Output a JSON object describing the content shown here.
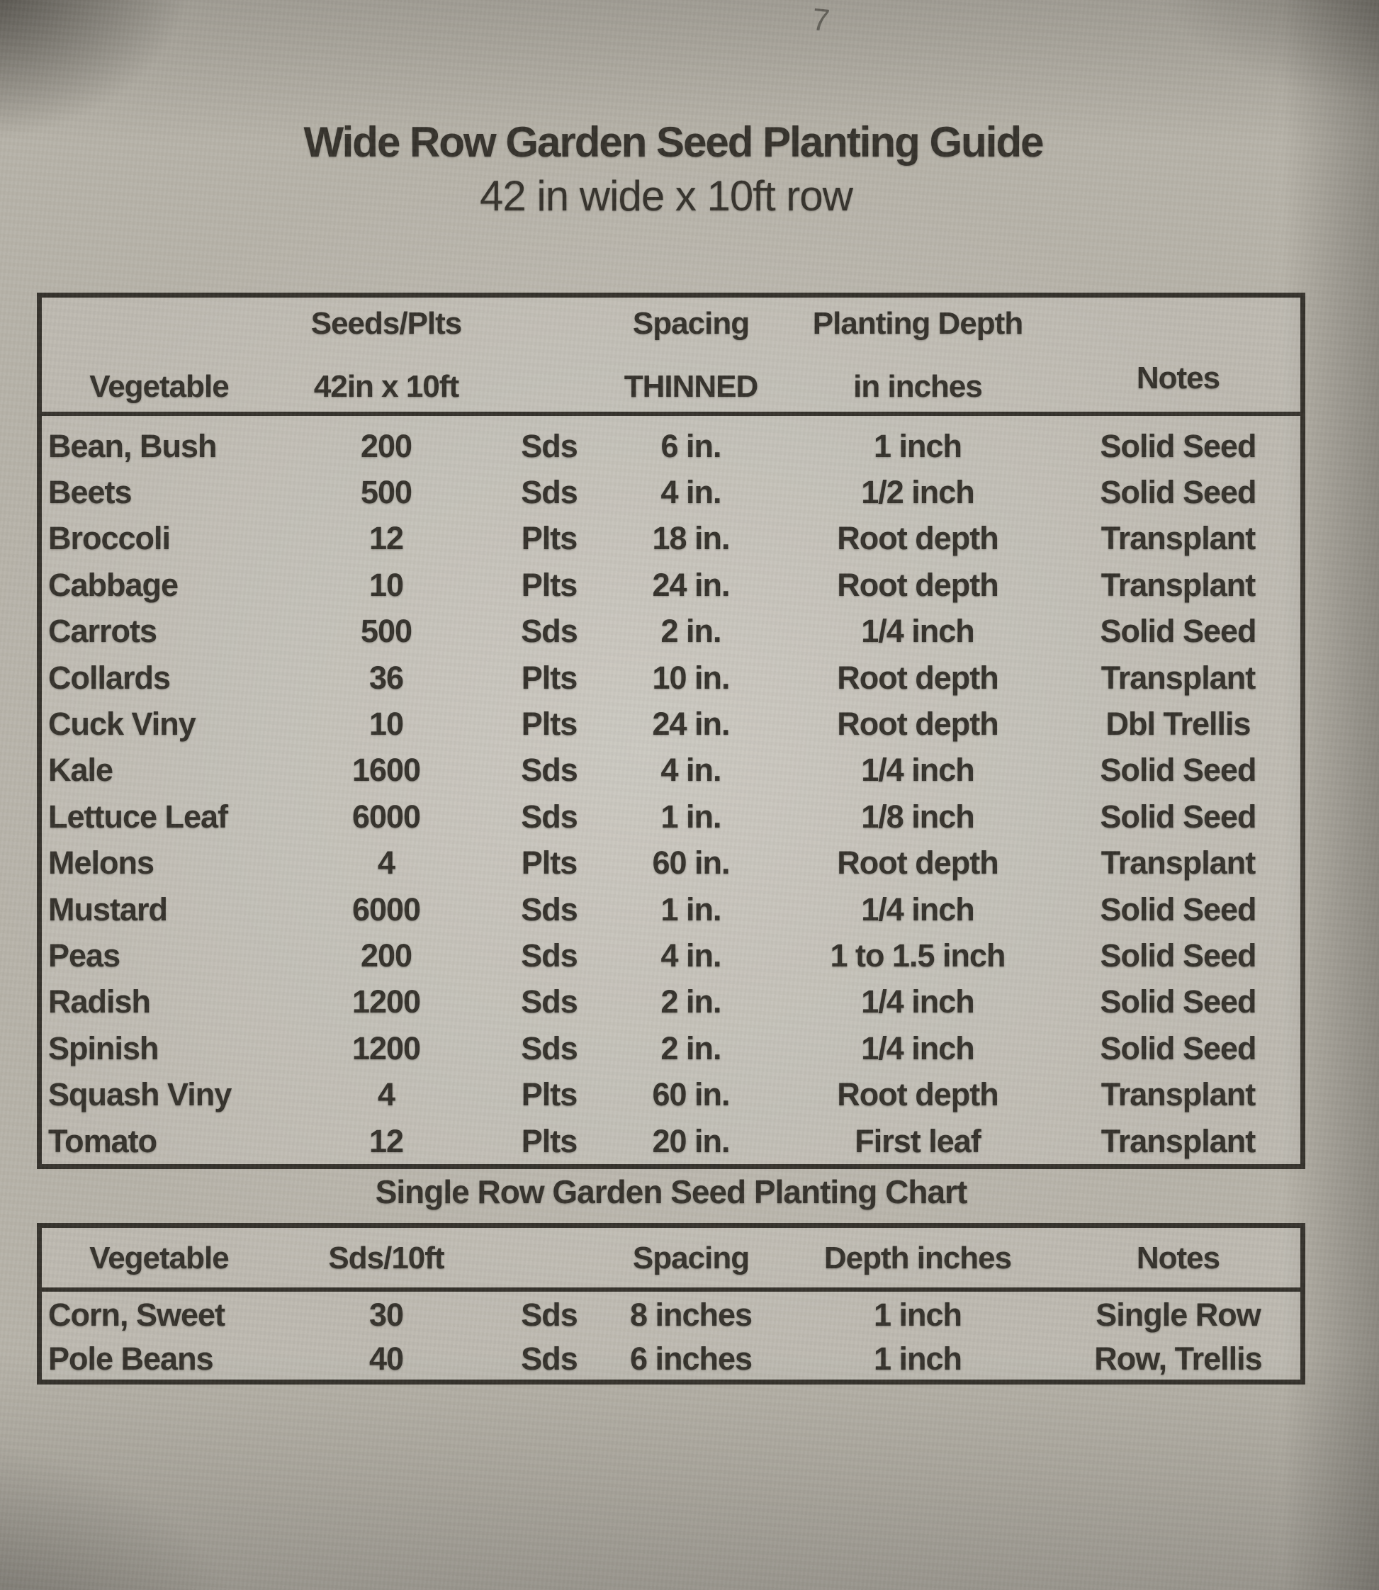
{
  "page": {
    "corner_mark": "7",
    "title": "Wide Row Garden Seed Planting Guide",
    "subtitle": "42 in wide x 10ft row"
  },
  "colors": {
    "paper": "#b6b2a8",
    "ink": "#33302a",
    "pencil_mark": "#55524b"
  },
  "wide_row_table": {
    "headers": {
      "vegetable": "Vegetable",
      "seeds_line1": "Seeds/Plts",
      "seeds_line2": "42in x 10ft",
      "spacing_line1": "Spacing",
      "spacing_line2": "THINNED",
      "depth_line1": "Planting Depth",
      "depth_line2": "in inches",
      "notes": "Notes"
    },
    "rows": [
      {
        "vegetable": "Bean, Bush",
        "qty": "200",
        "unit": "Sds",
        "spacing": "6 in.",
        "depth": "1 inch",
        "notes": "Solid Seed"
      },
      {
        "vegetable": "Beets",
        "qty": "500",
        "unit": "Sds",
        "spacing": "4 in.",
        "depth": "1/2 inch",
        "notes": "Solid Seed"
      },
      {
        "vegetable": "Broccoli",
        "qty": "12",
        "unit": "Plts",
        "spacing": "18 in.",
        "depth": "Root depth",
        "notes": "Transplant"
      },
      {
        "vegetable": "Cabbage",
        "qty": "10",
        "unit": "Plts",
        "spacing": "24 in.",
        "depth": "Root depth",
        "notes": "Transplant"
      },
      {
        "vegetable": "Carrots",
        "qty": "500",
        "unit": "Sds",
        "spacing": "2 in.",
        "depth": "1/4 inch",
        "notes": "Solid Seed"
      },
      {
        "vegetable": "Collards",
        "qty": "36",
        "unit": "Plts",
        "spacing": "10 in.",
        "depth": "Root depth",
        "notes": "Transplant"
      },
      {
        "vegetable": "Cuck Viny",
        "qty": "10",
        "unit": "Plts",
        "spacing": "24 in.",
        "depth": "Root depth",
        "notes": "Dbl Trellis"
      },
      {
        "vegetable": "Kale",
        "qty": "1600",
        "unit": "Sds",
        "spacing": "4 in.",
        "depth": "1/4 inch",
        "notes": "Solid Seed"
      },
      {
        "vegetable": "Lettuce Leaf",
        "qty": "6000",
        "unit": "Sds",
        "spacing": "1 in.",
        "depth": "1/8 inch",
        "notes": "Solid Seed"
      },
      {
        "vegetable": "Melons",
        "qty": "4",
        "unit": "Plts",
        "spacing": "60 in.",
        "depth": "Root depth",
        "notes": "Transplant"
      },
      {
        "vegetable": "Mustard",
        "qty": "6000",
        "unit": "Sds",
        "spacing": "1 in.",
        "depth": "1/4 inch",
        "notes": "Solid Seed"
      },
      {
        "vegetable": "Peas",
        "qty": "200",
        "unit": "Sds",
        "spacing": "4 in.",
        "depth": "1 to 1.5 inch",
        "notes": "Solid Seed"
      },
      {
        "vegetable": "Radish",
        "qty": "1200",
        "unit": "Sds",
        "spacing": "2 in.",
        "depth": "1/4 inch",
        "notes": "Solid Seed"
      },
      {
        "vegetable": "Spinish",
        "qty": "1200",
        "unit": "Sds",
        "spacing": "2 in.",
        "depth": "1/4 inch",
        "notes": "Solid Seed"
      },
      {
        "vegetable": "Squash Viny",
        "qty": "4",
        "unit": "Plts",
        "spacing": "60 in.",
        "depth": "Root depth",
        "notes": "Transplant"
      },
      {
        "vegetable": "Tomato",
        "qty": "12",
        "unit": "Plts",
        "spacing": "20 in.",
        "depth": "First leaf",
        "notes": "Transplant"
      }
    ]
  },
  "single_row_table": {
    "title": "Single Row Garden Seed Planting Chart",
    "headers": {
      "vegetable": "Vegetable",
      "seeds": "Sds/10ft",
      "spacing": "Spacing",
      "depth": "Depth inches",
      "notes": "Notes"
    },
    "rows": [
      {
        "vegetable": "Corn, Sweet",
        "qty": "30",
        "unit": "Sds",
        "spacing": "8 inches",
        "depth": "1 inch",
        "notes": "Single Row"
      },
      {
        "vegetable": "Pole Beans",
        "qty": "40",
        "unit": "Sds",
        "spacing": "6 inches",
        "depth": "1 inch",
        "notes": "Row, Trellis"
      }
    ]
  }
}
